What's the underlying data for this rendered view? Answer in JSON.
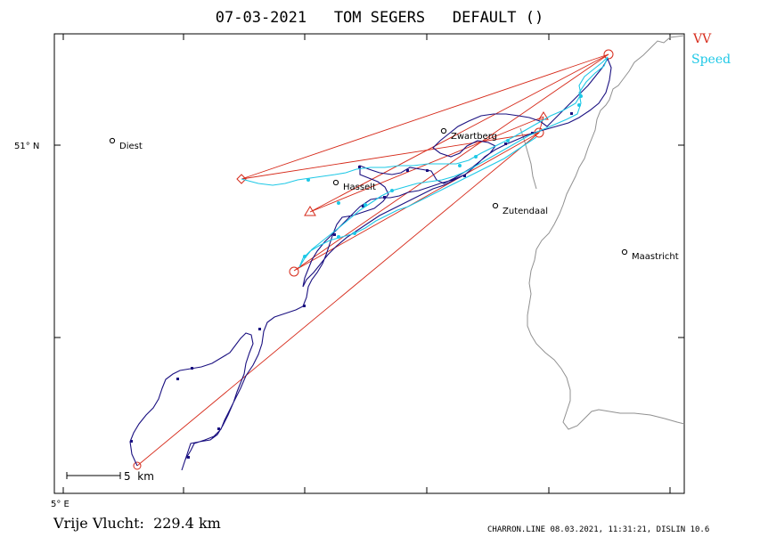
{
  "title": "07-03-2021   TOM SEGERS   DEFAULT ()",
  "legend": {
    "vv": {
      "label": "VV",
      "color": "#d62a1a"
    },
    "speed": {
      "label": "Speed",
      "color": "#1ec8e6"
    }
  },
  "axes": {
    "lat_label": "51° N",
    "lon_label": "5° E"
  },
  "places": [
    {
      "name": "Diest"
    },
    {
      "name": "Zwartberg"
    },
    {
      "name": "Hasselt"
    },
    {
      "name": "Zutendaal"
    },
    {
      "name": "Maastricht"
    }
  ],
  "scale_bar": {
    "label": "5  km"
  },
  "footer": {
    "distance": "Vrije Vlucht:  229.4 km",
    "credits": "CHARRON.LINE 08.03.2021, 11:31:21, DISLIN 10.6"
  },
  "colors": {
    "track": "#1a1080",
    "speed_track": "#1ec8e6",
    "task": "#d62a1a",
    "border": "#909090"
  }
}
